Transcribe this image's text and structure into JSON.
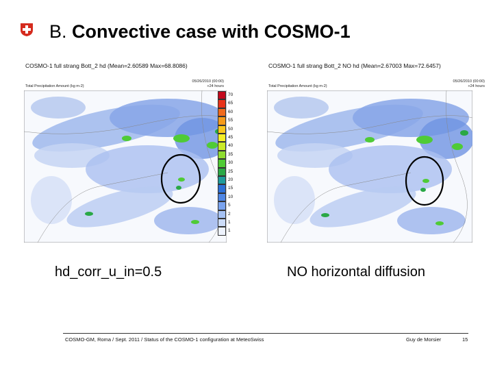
{
  "slide": {
    "title_prefix": "B.",
    "title_main": "Convective case with COSMO-1",
    "logo": "swiss-cross-icon",
    "accent_color": "#d52b1e"
  },
  "panels": [
    {
      "title": "COSMO-1 full strang Bott_2 hd (Mean=2.60589 Max=68.8086)",
      "subtitle": "Total Precipitation Amount (kg m-2)",
      "date": "05/26/2010 (00:00)",
      "lead": "+24 hours"
    },
    {
      "title": "COSMO-1 full strang Bott_2 NO hd (Mean=2.67003 Max=72.6457)",
      "subtitle": "Total Precipitation Amount (kg m-2)",
      "date": "05/26/2010 (00:00)",
      "lead": "+24 hours"
    }
  ],
  "colorbar": {
    "labels": [
      "70",
      "65",
      "60",
      "55",
      "50",
      "45",
      "40",
      "35",
      "30",
      "25",
      "20",
      "15",
      "10",
      "5",
      "2",
      "1",
      "1"
    ],
    "colors": [
      "#c40a1e",
      "#e8331a",
      "#f06a1c",
      "#f59a1a",
      "#f9c81f",
      "#f4ef2a",
      "#c9ea2b",
      "#8fdd2f",
      "#4fcb36",
      "#2aa846",
      "#1f9b9b",
      "#2d6fd6",
      "#4f86e4",
      "#7aa3ee",
      "#a6c2f4",
      "#ccdcf8",
      "#eef3fd"
    ]
  },
  "captions": {
    "left": "hd_corr_u_in=0.5",
    "right": "NO horizontal diffusion"
  },
  "footer": {
    "text": "COSMO-GM, Roma / Sept. 2011 / Status of the COSMO-1 configuration at MeteoSwiss",
    "author": "Guy de Morsier",
    "page": "15"
  }
}
